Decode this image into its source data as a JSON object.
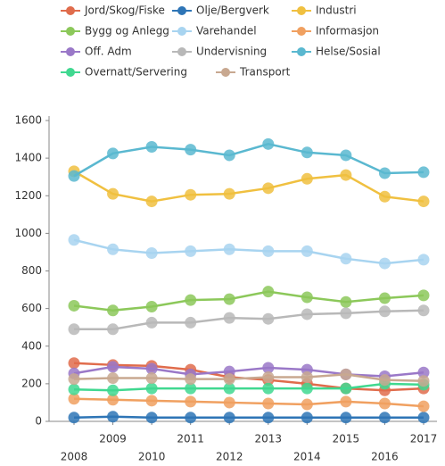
{
  "chart_data": {
    "type": "line",
    "categories": [
      "2008",
      "2009",
      "2010",
      "2011",
      "2012",
      "2013",
      "2014",
      "2015",
      "2016",
      "2017"
    ],
    "ylim": [
      0,
      1600
    ],
    "yticks": [
      0,
      200,
      400,
      600,
      800,
      1000,
      1200,
      1400,
      1600
    ],
    "series": [
      {
        "name": "Jord/Skog/Fiske",
        "color": "#e06c4c",
        "values": [
          310,
          300,
          295,
          275,
          235,
          220,
          200,
          175,
          165,
          175
        ]
      },
      {
        "name": "Olje/Bergverk",
        "color": "#2e75b6",
        "values": [
          20,
          25,
          20,
          20,
          20,
          20,
          20,
          20,
          20,
          20
        ]
      },
      {
        "name": "Industri",
        "color": "#f0c040",
        "values": [
          1330,
          1210,
          1170,
          1205,
          1210,
          1240,
          1290,
          1310,
          1195,
          1170
        ]
      },
      {
        "name": "Bygg og Anlegg",
        "color": "#8cc85a",
        "values": [
          615,
          590,
          610,
          645,
          650,
          690,
          660,
          635,
          655,
          670
        ]
      },
      {
        "name": "Varehandel",
        "color": "#a8d4f0",
        "values": [
          965,
          915,
          895,
          905,
          915,
          905,
          905,
          865,
          840,
          860
        ]
      },
      {
        "name": "Informasjon",
        "color": "#f0a060",
        "values": [
          120,
          115,
          110,
          105,
          100,
          95,
          90,
          105,
          95,
          80
        ]
      },
      {
        "name": "Off. Adm",
        "color": "#9a78c8",
        "values": [
          255,
          290,
          280,
          250,
          265,
          285,
          275,
          250,
          240,
          260
        ]
      },
      {
        "name": "Undervisning",
        "color": "#b8b8b8",
        "values": [
          490,
          490,
          525,
          525,
          550,
          545,
          570,
          575,
          585,
          590
        ]
      },
      {
        "name": "Helse/Sosial",
        "color": "#5ab8d0",
        "values": [
          1305,
          1425,
          1460,
          1445,
          1415,
          1475,
          1430,
          1415,
          1320,
          1325
        ]
      },
      {
        "name": "Overnatt/Servering",
        "color": "#40d890",
        "values": [
          170,
          165,
          175,
          175,
          175,
          175,
          175,
          175,
          200,
          195
        ]
      },
      {
        "name": "Transport",
        "color": "#c8a890",
        "values": [
          225,
          230,
          230,
          225,
          225,
          235,
          235,
          250,
          220,
          215
        ]
      }
    ]
  }
}
